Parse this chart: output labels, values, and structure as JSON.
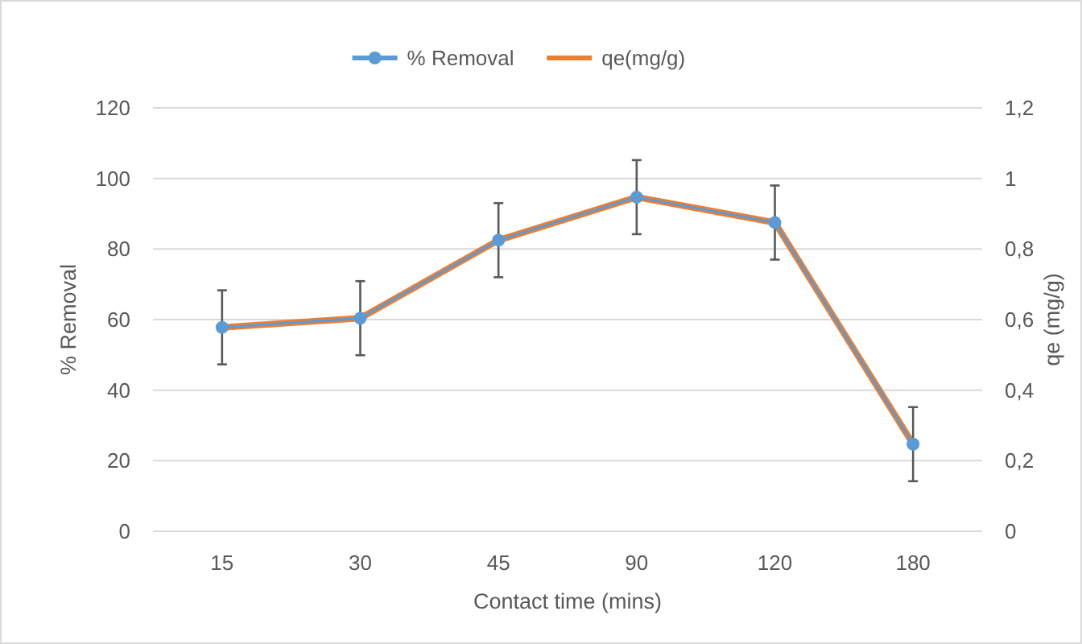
{
  "chart_data": {
    "type": "line",
    "xlabel": "Contact time (mins)",
    "ylabel": "% Removal",
    "y2label": "qe (mg/g)",
    "categories": [
      "15",
      "30",
      "45",
      "90",
      "120",
      "180"
    ],
    "series": [
      {
        "name": "% Removal",
        "color": "#5b9bd5",
        "values": [
          57.8,
          60.4,
          82.5,
          94.7,
          87.5,
          24.7
        ],
        "marker": "circle"
      },
      {
        "name": "qe(mg/g)",
        "color": "#ed7d31",
        "values": [
          0.578,
          0.604,
          0.825,
          0.947,
          0.875,
          0.247
        ],
        "errors": [
          0.105,
          0.105,
          0.105,
          0.105,
          0.105,
          0.105
        ],
        "axis": "y2"
      }
    ],
    "ylim": [
      0,
      120
    ],
    "yticks": [
      0,
      20,
      40,
      60,
      80,
      100,
      120
    ],
    "y2lim": [
      0,
      1.2
    ],
    "y2ticks": [
      0,
      {
        "value": 0.2,
        "label": "0,2"
      },
      {
        "value": 0.4,
        "label": "0,4"
      },
      {
        "value": 0.6,
        "label": "0,6"
      },
      {
        "value": 0.8,
        "label": "0,8"
      },
      1,
      {
        "value": 1.2,
        "label": "1,2"
      }
    ],
    "grid": "y",
    "legend": "top"
  }
}
